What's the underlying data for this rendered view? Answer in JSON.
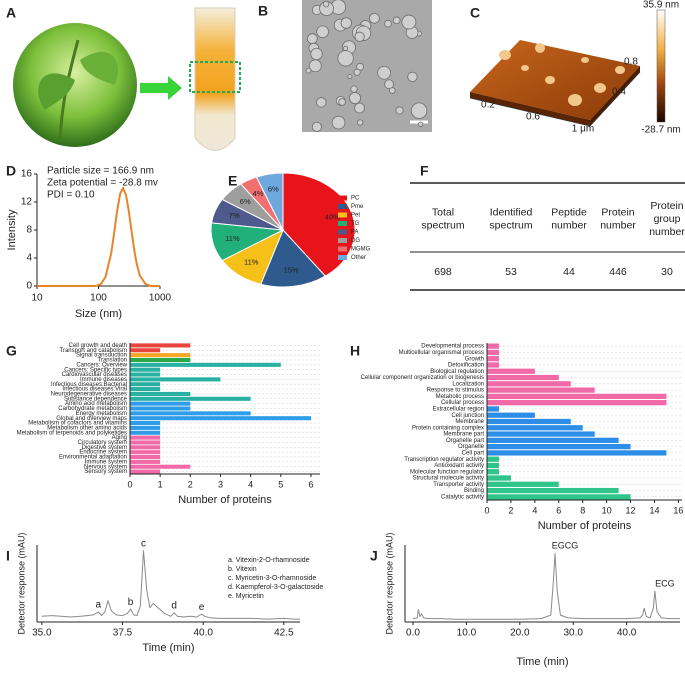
{
  "panel_labels": [
    "A",
    "B",
    "C",
    "D",
    "E",
    "F",
    "G",
    "H",
    "I",
    "J"
  ],
  "image_c": {
    "colorbar_max": "35.9 nm",
    "colorbar_min": "-28.7 nm",
    "x_ticks": [
      "0.2",
      "0.6",
      "1 μm"
    ],
    "y_ticks": [
      "0.4",
      "0.8"
    ]
  },
  "table": {
    "header": [
      [
        "Total",
        "spectrum"
      ],
      [
        "Identified",
        "spectrum"
      ],
      [
        "Peptide",
        "number"
      ],
      [
        "Protein",
        "number"
      ],
      [
        "Protein",
        "group",
        "number"
      ]
    ],
    "rows": [
      [
        "698",
        "53",
        "44",
        "446",
        "30"
      ]
    ]
  },
  "chart_data": [
    {
      "type": "line",
      "xlog": true,
      "annotations": [
        "Particle size = 166.9 nm",
        "Zeta potential = -28.8 mv",
        "PDI = 0.10"
      ],
      "x": [
        10,
        50,
        90,
        110,
        130,
        160,
        180,
        200,
        225,
        250,
        280,
        310,
        345,
        380,
        420,
        470,
        580,
        700,
        1000
      ],
      "values": [
        0,
        0,
        0,
        0.3,
        1.3,
        4.6,
        7.6,
        10.6,
        13.2,
        14,
        13,
        10.8,
        7.8,
        5.2,
        3.1,
        1.5,
        0.3,
        0,
        0
      ],
      "color": "#e8842a",
      "xlim": [
        10,
        1000
      ],
      "xticks": [
        10,
        100,
        1000
      ],
      "ylim": [
        0,
        16
      ],
      "yticks": [
        0,
        4,
        8,
        12,
        16
      ],
      "xlabel": "Size (nm)",
      "ylabel": "Intensity"
    },
    {
      "type": "pie",
      "categories": [
        "PC",
        "Pme",
        "Pet",
        "TG",
        "PA",
        "DG",
        "MGMG",
        "Other"
      ],
      "values": [
        40,
        15,
        11,
        11,
        7,
        6,
        4,
        6
      ],
      "value_labels": [
        "40%",
        "15%",
        "11%",
        "11%",
        "7%",
        "6%",
        "4%",
        "6%"
      ],
      "colors": [
        "#e8141c",
        "#2e5a8e",
        "#f5c018",
        "#22b07a",
        "#4e5a8c",
        "#9e9e9e",
        "#f07070",
        "#6fa8dc"
      ]
    },
    {
      "type": "barh",
      "categories": [
        "Cell growth and death",
        "Transport and catabolism",
        "Signal transduction",
        "Translation",
        "Cancers: Overview",
        "Cancers: Specific types",
        "Cardiovascular  diseases",
        "Immune diseases",
        "Infectious diseases:Bacterial",
        "Infectious diseases:Viral",
        "Neurodegenerative  diseases",
        "Substance dependence",
        "Amino acid metabolism",
        "Carbohydrate  metabolism",
        "Energy metabolism",
        "Global and overview  maps",
        "Metabolism of cofactors and vitamins",
        "Metabolism other amino acids",
        "Metabolism of terpenoids and polyketides",
        "Aging",
        "Circulatory system",
        "Digestive system",
        "Endocrine system",
        "Environmental  adaptation",
        "Immune  system",
        "Nervous  system",
        "Sensory system"
      ],
      "values": [
        2,
        1,
        2,
        2,
        5,
        1,
        1,
        3,
        1,
        1,
        2,
        4,
        2,
        2,
        4,
        6,
        1,
        1,
        1,
        1,
        1,
        1,
        1,
        1,
        1,
        2,
        1
      ],
      "colors": [
        "#e8453c",
        "#e8453c",
        "#f5a623",
        "#2aa84a",
        "#2ab0a0",
        "#2ab0a0",
        "#2ab0a0",
        "#2ab0a0",
        "#2ab0a0",
        "#2ab0a0",
        "#2ab0a0",
        "#2ab0a0",
        "#2e9ce6",
        "#2e9ce6",
        "#2e9ce6",
        "#2e9ce6",
        "#2e9ce6",
        "#2e9ce6",
        "#2e9ce6",
        "#f06aa8",
        "#f06aa8",
        "#f06aa8",
        "#f06aa8",
        "#f06aa8",
        "#f06aa8",
        "#f06aa8",
        "#f06aa8"
      ],
      "label_colors": [
        "#222",
        "#222",
        "#222",
        "#222",
        "#e8141c",
        "#222",
        "#222",
        "#e8141c",
        "#222",
        "#222",
        "#222",
        "#222",
        "#222",
        "#222",
        "#e8141c",
        "#222",
        "#222",
        "#222",
        "#222",
        "#222",
        "#222",
        "#222",
        "#222",
        "#222",
        "#222",
        "#222",
        "#222"
      ],
      "xlim": [
        0,
        6.3
      ],
      "xticks": [
        0,
        1,
        2,
        3,
        4,
        5,
        6
      ],
      "grid": true,
      "xlabel": "Number  of proteins"
    },
    {
      "type": "barh",
      "categories": [
        "Developmental process",
        "Multicellular organismal process",
        "Growth",
        "Detoxification",
        "Biological regulation",
        "Cellular component organization or biogenesis",
        "Localization",
        "Response to stimulus",
        "Metabolic process",
        "Cellular process",
        "Extracellular region",
        "Cell junction",
        "Membrane",
        "Protein containing complex",
        "Membrane part",
        "Organelle part",
        "Organelle",
        "Cell part",
        "Transcription regulator activity",
        "Antioxidant activity",
        "Molecular function regulator",
        "Structural molecule activity",
        "Transporter activity",
        "Binding",
        "Catalytic activity"
      ],
      "values": [
        1,
        1,
        1,
        1,
        4,
        6,
        7,
        9,
        15,
        15,
        1,
        4,
        7,
        8,
        9,
        11,
        12,
        15,
        1,
        1,
        1,
        2,
        6,
        11,
        12
      ],
      "colors": [
        "#f06aa8",
        "#f06aa8",
        "#f06aa8",
        "#f06aa8",
        "#f06aa8",
        "#f06aa8",
        "#f06aa8",
        "#f06aa8",
        "#f06aa8",
        "#f06aa8",
        "#2e8de6",
        "#2e8de6",
        "#2e8de6",
        "#2e8de6",
        "#2e8de6",
        "#2e8de6",
        "#2e8de6",
        "#2e8de6",
        "#2ec48a",
        "#2ec48a",
        "#2ec48a",
        "#2ec48a",
        "#2ec48a",
        "#2ec48a",
        "#2ec48a"
      ],
      "label_colors": [
        "#222",
        "#222",
        "#222",
        "#222",
        "#222",
        "#222",
        "#222",
        "#e8141c",
        "#e8141c",
        "#e8141c",
        "#222",
        "#222",
        "#222",
        "#222",
        "#222",
        "#e8141c",
        "#e8141c",
        "#e8141c",
        "#222",
        "#222",
        "#222",
        "#222",
        "#e8141c",
        "#e8141c",
        "#e8141c"
      ],
      "xlim": [
        0,
        16.3
      ],
      "xticks": [
        0,
        2,
        4,
        6,
        8,
        10,
        12,
        14,
        16
      ],
      "grid": true,
      "xlabel": "Number  of proteins"
    },
    {
      "type": "line",
      "x": [
        35.0,
        35.3,
        35.6,
        35.9,
        36.2,
        36.4,
        36.6,
        36.75,
        36.85,
        36.95,
        37.05,
        37.15,
        37.3,
        37.5,
        37.65,
        37.75,
        37.85,
        37.95,
        38.05,
        38.15,
        38.25,
        38.35,
        38.45,
        38.6,
        38.8,
        39.0,
        39.1,
        39.2,
        39.4,
        39.6,
        39.8,
        39.95,
        40.05,
        40.2,
        40.5,
        41.0,
        41.5,
        42.0,
        42.5,
        42.8,
        43.0
      ],
      "values": [
        8,
        9,
        8,
        7,
        8,
        9,
        10,
        14,
        9,
        14,
        30,
        16,
        10,
        9,
        12,
        18,
        10,
        9,
        22,
        100,
        45,
        20,
        26,
        20,
        12,
        8,
        13,
        8,
        7,
        8,
        7,
        11,
        8,
        6,
        5,
        5,
        5,
        4,
        5,
        4,
        4
      ],
      "color": "#8a8a8a",
      "xlim": [
        34.85,
        43.0
      ],
      "xticks": [
        {
          "value": 35,
          "label": "35.0"
        },
        {
          "value": 37.5,
          "label": "37.5"
        },
        {
          "value": 40,
          "label": "40.0"
        },
        {
          "value": 42.5,
          "label": "42.5"
        }
      ],
      "ylim": [
        0,
        108
      ],
      "xlabel": "Time (min)",
      "ylabel": "Detector response (mAU)",
      "peak_labels": [
        {
          "text": "a",
          "x": 36.75,
          "y": 14
        },
        {
          "text": "b",
          "x": 37.75,
          "y": 18
        },
        {
          "text": "c",
          "x": 38.15,
          "y": 100
        },
        {
          "text": "d",
          "x": 39.1,
          "y": 13
        },
        {
          "text": "e",
          "x": 39.95,
          "y": 11
        }
      ],
      "legend": [
        "a. Vitexin-2-O-rhamnoside",
        "b. Vitexin",
        "c. Myricetin-3-O-rhamnoside",
        "d.  Kaempferol-3-O-galactoside",
        "e. Myricetin"
      ]
    },
    {
      "type": "line",
      "x": [
        0,
        0.8,
        1.0,
        1.3,
        1.6,
        2.0,
        3,
        5,
        8,
        10,
        15,
        20,
        24,
        25.8,
        26.3,
        26.6,
        27.0,
        27.6,
        29,
        32,
        35,
        38,
        40,
        42.5,
        43.0,
        43.3,
        43.7,
        44.4,
        45.0,
        45.3,
        45.7,
        46.5,
        48,
        50
      ],
      "values": [
        5,
        6,
        18,
        8,
        12,
        6,
        5,
        5,
        4,
        4,
        4,
        4,
        5,
        10,
        60,
        100,
        45,
        10,
        6,
        5,
        5,
        5,
        5,
        6,
        10,
        20,
        8,
        6,
        20,
        45,
        15,
        6,
        5,
        5
      ],
      "color": "#8a8a8a",
      "xlim": [
        -1.5,
        50
      ],
      "xticks": [
        {
          "value": 0,
          "label": "0.0"
        },
        {
          "value": 10,
          "label": "10.0"
        },
        {
          "value": 20,
          "label": "20.0"
        },
        {
          "value": 30,
          "label": "30.0"
        },
        {
          "value": 40,
          "label": "40.0"
        }
      ],
      "ylim": [
        0,
        112
      ],
      "xlabel": "Time (min)",
      "ylabel": "Detector response (mAU)",
      "peak_labels": [
        {
          "text": "EGCG",
          "x": 26.6,
          "y": 100
        },
        {
          "text": "ECG",
          "x": 45.3,
          "y": 45
        }
      ]
    }
  ]
}
